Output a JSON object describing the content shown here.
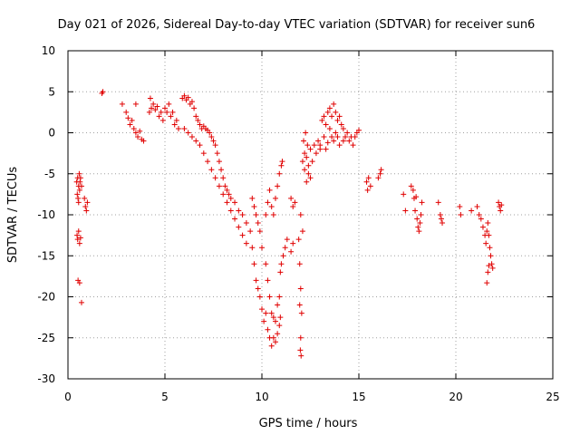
{
  "chart_data": {
    "type": "scatter",
    "title": "Day 021 of 2026, Sidereal Day-to-day VTEC variation (SDTVAR) for receiver sun6",
    "xlabel": "GPS time / hours",
    "ylabel": "SDTVAR / TECUs",
    "xlim": [
      0,
      25
    ],
    "ylim": [
      -30,
      10
    ],
    "xticks": [
      0,
      5,
      10,
      15,
      20,
      25
    ],
    "xtick_labels": [
      "0",
      "5",
      "10",
      "15",
      "20",
      "25"
    ],
    "yticks": [
      -30,
      -25,
      -20,
      -15,
      -10,
      -5,
      0,
      5,
      10
    ],
    "ytick_labels": [
      "-30",
      "-25",
      "-20",
      "-15",
      "-10",
      "-5",
      "0",
      "5",
      "10"
    ],
    "grid": true,
    "marker": "+",
    "marker_color": "#e00000",
    "series": [
      {
        "name": "SDTVAR",
        "points": [
          [
            0.45,
            -6.0
          ],
          [
            0.48,
            -7.5
          ],
          [
            0.5,
            -5.5
          ],
          [
            0.52,
            -8.0
          ],
          [
            0.55,
            -6.5
          ],
          [
            0.58,
            -5.0
          ],
          [
            0.6,
            -7.0
          ],
          [
            0.62,
            -6.0
          ],
          [
            0.65,
            -5.5
          ],
          [
            0.7,
            -6.5
          ],
          [
            0.55,
            -8.5
          ],
          [
            0.47,
            -12.5
          ],
          [
            0.5,
            -13.0
          ],
          [
            0.55,
            -12.0
          ],
          [
            0.6,
            -13.5
          ],
          [
            0.65,
            -12.8
          ],
          [
            0.52,
            -18.0
          ],
          [
            0.6,
            -18.3
          ],
          [
            0.7,
            -20.7
          ],
          [
            0.85,
            -8.0
          ],
          [
            0.9,
            -9.0
          ],
          [
            1.0,
            -8.5
          ],
          [
            0.95,
            -9.5
          ],
          [
            1.75,
            4.8
          ],
          [
            1.8,
            5.0
          ],
          [
            2.8,
            3.5
          ],
          [
            3.0,
            2.5
          ],
          [
            3.1,
            1.8
          ],
          [
            3.2,
            1.0
          ],
          [
            3.3,
            1.5
          ],
          [
            3.4,
            0.5
          ],
          [
            3.5,
            0.0
          ],
          [
            3.6,
            -0.5
          ],
          [
            3.7,
            0.2
          ],
          [
            3.8,
            -0.8
          ],
          [
            3.5,
            3.5
          ],
          [
            3.9,
            -1.0
          ],
          [
            4.2,
            2.5
          ],
          [
            4.3,
            3.0
          ],
          [
            4.4,
            3.5
          ],
          [
            4.5,
            2.8
          ],
          [
            4.6,
            3.2
          ],
          [
            4.7,
            2.0
          ],
          [
            4.8,
            2.5
          ],
          [
            4.9,
            1.5
          ],
          [
            5.0,
            3.0
          ],
          [
            5.1,
            2.5
          ],
          [
            5.2,
            3.5
          ],
          [
            5.3,
            2.0
          ],
          [
            5.4,
            2.5
          ],
          [
            5.5,
            1.0
          ],
          [
            5.6,
            1.5
          ],
          [
            5.7,
            0.5
          ],
          [
            4.25,
            4.2
          ],
          [
            5.9,
            4.2
          ],
          [
            6.0,
            4.5
          ],
          [
            6.1,
            4.0
          ],
          [
            6.2,
            4.3
          ],
          [
            6.3,
            3.5
          ],
          [
            6.4,
            3.8
          ],
          [
            6.5,
            3.0
          ],
          [
            6.6,
            2.0
          ],
          [
            6.7,
            1.5
          ],
          [
            6.8,
            1.0
          ],
          [
            6.9,
            0.5
          ],
          [
            7.0,
            0.8
          ],
          [
            7.1,
            0.5
          ],
          [
            7.2,
            0.3
          ],
          [
            7.3,
            0.0
          ],
          [
            7.4,
            -0.5
          ],
          [
            7.5,
            -1.0
          ],
          [
            7.6,
            -1.5
          ],
          [
            7.7,
            -2.5
          ],
          [
            7.8,
            -3.5
          ],
          [
            7.9,
            -4.5
          ],
          [
            8.0,
            -5.5
          ],
          [
            8.1,
            -6.5
          ],
          [
            8.2,
            -7.0
          ],
          [
            8.3,
            -7.5
          ],
          [
            8.4,
            -8.0
          ],
          [
            6.0,
            0.5
          ],
          [
            6.2,
            0.0
          ],
          [
            6.4,
            -0.5
          ],
          [
            6.6,
            -1.0
          ],
          [
            6.8,
            -1.5
          ],
          [
            7.0,
            -2.5
          ],
          [
            7.2,
            -3.5
          ],
          [
            7.4,
            -4.5
          ],
          [
            7.6,
            -5.5
          ],
          [
            7.8,
            -6.5
          ],
          [
            8.0,
            -7.5
          ],
          [
            8.2,
            -8.5
          ],
          [
            8.4,
            -9.5
          ],
          [
            8.6,
            -10.5
          ],
          [
            8.8,
            -11.5
          ],
          [
            9.0,
            -12.5
          ],
          [
            9.2,
            -13.5
          ],
          [
            8.6,
            -8.5
          ],
          [
            8.8,
            -9.5
          ],
          [
            9.0,
            -10.0
          ],
          [
            9.2,
            -11.0
          ],
          [
            9.4,
            -12.0
          ],
          [
            9.5,
            -14.0
          ],
          [
            9.6,
            -16.0
          ],
          [
            9.7,
            -18.0
          ],
          [
            9.8,
            -19.0
          ],
          [
            9.9,
            -20.0
          ],
          [
            10.0,
            -21.5
          ],
          [
            10.1,
            -23.0
          ],
          [
            10.2,
            -22.0
          ],
          [
            10.3,
            -24.0
          ],
          [
            10.4,
            -25.0
          ],
          [
            10.5,
            -26.0
          ],
          [
            10.6,
            -25.0
          ],
          [
            10.7,
            -25.5
          ],
          [
            10.8,
            -24.5
          ],
          [
            10.9,
            -23.5
          ],
          [
            10.95,
            -22.5
          ],
          [
            9.5,
            -8.0
          ],
          [
            9.6,
            -9.0
          ],
          [
            9.7,
            -10.0
          ],
          [
            9.8,
            -11.0
          ],
          [
            9.9,
            -12.0
          ],
          [
            10.0,
            -14.0
          ],
          [
            10.2,
            -16.0
          ],
          [
            10.3,
            -18.0
          ],
          [
            10.4,
            -20.0
          ],
          [
            10.5,
            -22.0
          ],
          [
            10.6,
            -22.5
          ],
          [
            10.7,
            -23.0
          ],
          [
            10.8,
            -21.0
          ],
          [
            10.9,
            -20.0
          ],
          [
            10.2,
            -10.0
          ],
          [
            10.3,
            -8.5
          ],
          [
            10.4,
            -7.0
          ],
          [
            10.5,
            -9.0
          ],
          [
            10.6,
            -10.0
          ],
          [
            10.7,
            -8.0
          ],
          [
            10.8,
            -6.5
          ],
          [
            10.9,
            -5.0
          ],
          [
            11.0,
            -4.0
          ],
          [
            11.05,
            -3.5
          ],
          [
            10.95,
            -17.0
          ],
          [
            11.0,
            -16.0
          ],
          [
            11.1,
            -15.0
          ],
          [
            11.2,
            -14.0
          ],
          [
            11.3,
            -13.0
          ],
          [
            11.5,
            -14.5
          ],
          [
            11.6,
            -13.5
          ],
          [
            11.5,
            -8.0
          ],
          [
            11.6,
            -9.0
          ],
          [
            11.7,
            -8.5
          ],
          [
            11.9,
            -13.0
          ],
          [
            11.95,
            -16.0
          ],
          [
            12.0,
            -19.0
          ],
          [
            12.05,
            -22.0
          ],
          [
            12.0,
            -25.0
          ],
          [
            11.98,
            -26.5
          ],
          [
            12.02,
            -27.2
          ],
          [
            11.95,
            -21.0
          ],
          [
            12.1,
            -12.0
          ],
          [
            12.0,
            -10.0
          ],
          [
            12.1,
            -3.5
          ],
          [
            12.2,
            -2.5
          ],
          [
            12.3,
            -3.0
          ],
          [
            12.4,
            -4.0
          ],
          [
            12.5,
            -2.0
          ],
          [
            12.6,
            -3.5
          ],
          [
            12.7,
            -1.5
          ],
          [
            12.8,
            -2.5
          ],
          [
            12.9,
            -1.0
          ],
          [
            13.0,
            -2.0
          ],
          [
            12.3,
            -6.0
          ],
          [
            12.4,
            -5.0
          ],
          [
            12.5,
            -5.5
          ],
          [
            12.2,
            -4.5
          ],
          [
            12.15,
            -1.0
          ],
          [
            12.25,
            0.0
          ],
          [
            12.35,
            -1.5
          ],
          [
            13.1,
            1.5
          ],
          [
            13.2,
            2.0
          ],
          [
            13.3,
            1.0
          ],
          [
            13.4,
            2.5
          ],
          [
            13.5,
            3.0
          ],
          [
            13.6,
            2.0
          ],
          [
            13.7,
            3.5
          ],
          [
            13.8,
            2.5
          ],
          [
            13.9,
            1.5
          ],
          [
            14.0,
            2.0
          ],
          [
            14.1,
            1.0
          ],
          [
            14.2,
            0.5
          ],
          [
            14.3,
            -0.5
          ],
          [
            14.4,
            0.0
          ],
          [
            14.5,
            -1.0
          ],
          [
            14.6,
            -0.5
          ],
          [
            14.7,
            -1.5
          ],
          [
            14.8,
            -0.5
          ],
          [
            14.9,
            0.0
          ],
          [
            15.0,
            0.3
          ],
          [
            13.5,
            0.5
          ],
          [
            13.6,
            -0.5
          ],
          [
            13.7,
            -1.0
          ],
          [
            13.8,
            0.0
          ],
          [
            13.9,
            -0.5
          ],
          [
            14.0,
            -1.5
          ],
          [
            14.2,
            -1.0
          ],
          [
            13.4,
            -1.2
          ],
          [
            13.2,
            -0.5
          ],
          [
            13.0,
            -1.5
          ],
          [
            13.3,
            -2.0
          ],
          [
            15.4,
            -6.0
          ],
          [
            15.5,
            -5.5
          ],
          [
            15.6,
            -6.5
          ],
          [
            15.45,
            -7.0
          ],
          [
            16.0,
            -5.5
          ],
          [
            16.1,
            -5.0
          ],
          [
            16.15,
            -4.5
          ],
          [
            17.3,
            -7.5
          ],
          [
            17.4,
            -9.5
          ],
          [
            17.7,
            -6.5
          ],
          [
            17.8,
            -7.0
          ],
          [
            17.85,
            -8.0
          ],
          [
            17.9,
            -9.5
          ],
          [
            18.0,
            -10.5
          ],
          [
            18.05,
            -11.5
          ],
          [
            18.1,
            -12.0
          ],
          [
            18.15,
            -11.0
          ],
          [
            18.2,
            -10.0
          ],
          [
            17.95,
            -7.8
          ],
          [
            18.25,
            -8.5
          ],
          [
            19.1,
            -8.5
          ],
          [
            19.2,
            -10.0
          ],
          [
            19.25,
            -10.5
          ],
          [
            19.3,
            -11.0
          ],
          [
            20.2,
            -9.0
          ],
          [
            20.25,
            -10.0
          ],
          [
            20.8,
            -9.5
          ],
          [
            21.1,
            -9.0
          ],
          [
            21.2,
            -10.0
          ],
          [
            21.3,
            -10.5
          ],
          [
            21.4,
            -11.5
          ],
          [
            21.5,
            -12.5
          ],
          [
            21.55,
            -13.5
          ],
          [
            21.6,
            -12.0
          ],
          [
            21.65,
            -11.0
          ],
          [
            21.7,
            -12.5
          ],
          [
            21.75,
            -14.0
          ],
          [
            21.8,
            -15.0
          ],
          [
            21.85,
            -16.0
          ],
          [
            21.9,
            -16.5
          ],
          [
            21.65,
            -17.0
          ],
          [
            21.6,
            -18.3
          ],
          [
            21.7,
            -16.2
          ],
          [
            22.2,
            -8.5
          ],
          [
            22.25,
            -9.0
          ],
          [
            22.3,
            -9.5
          ],
          [
            22.35,
            -8.8
          ]
        ]
      }
    ]
  }
}
